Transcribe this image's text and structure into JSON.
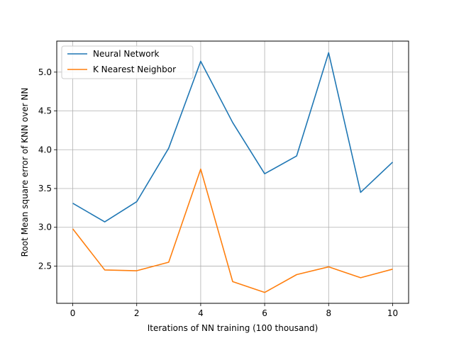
{
  "chart_data": {
    "type": "line",
    "title": "",
    "xlabel": "Iterations of NN training (100 thousand)",
    "ylabel": "Root Mean square error of KNN over NN",
    "xlim": [
      -0.5,
      10.5
    ],
    "ylim": [
      2.02,
      5.4
    ],
    "xticks": [
      0,
      2,
      4,
      6,
      8,
      10
    ],
    "xtick_labels": [
      "0",
      "2",
      "4",
      "6",
      "8",
      "10"
    ],
    "yticks": [
      2.5,
      3.0,
      3.5,
      4.0,
      4.5,
      5.0
    ],
    "ytick_labels": [
      "2.5",
      "3.0",
      "3.5",
      "4.0",
      "4.5",
      "5.0"
    ],
    "grid": true,
    "legend_position": "top-left",
    "x": [
      0,
      1,
      2,
      3,
      4,
      5,
      6,
      7,
      8,
      9,
      10
    ],
    "series": [
      {
        "name": "Neural Network",
        "color": "#1f77b4",
        "values": [
          3.31,
          3.07,
          3.33,
          4.02,
          5.14,
          4.35,
          3.69,
          3.92,
          5.25,
          3.45,
          3.84
        ]
      },
      {
        "name": "K Nearest Neighbor",
        "color": "#ff7f0e",
        "values": [
          2.98,
          2.45,
          2.44,
          2.55,
          3.75,
          2.3,
          2.16,
          2.39,
          2.49,
          2.35,
          2.46
        ]
      }
    ]
  }
}
